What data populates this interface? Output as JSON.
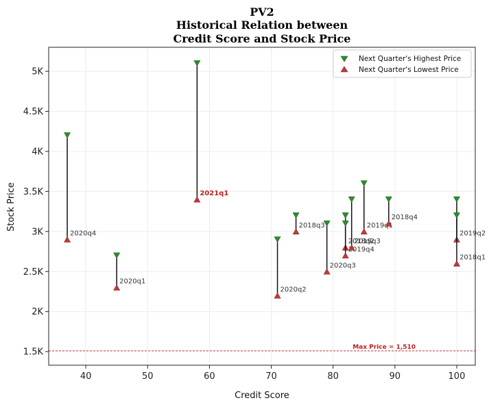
{
  "chart_data": {
    "type": "scatter",
    "title_lines": [
      "PV2",
      "Historical Relation between",
      "Credit Score and Stock Price"
    ],
    "xlabel": "Credit Score",
    "ylabel": "Stock Price",
    "xlim": [
      34,
      103
    ],
    "ylim": [
      1330,
      5300
    ],
    "x_ticks": [
      40,
      50,
      60,
      70,
      80,
      90,
      100
    ],
    "y_ticks": [
      {
        "value": 1500,
        "label": "1.5K"
      },
      {
        "value": 2000,
        "label": "2K"
      },
      {
        "value": 2500,
        "label": "2.5K"
      },
      {
        "value": 3000,
        "label": "3K"
      },
      {
        "value": 3500,
        "label": "3.5K"
      },
      {
        "value": 4000,
        "label": "4K"
      },
      {
        "value": 4500,
        "label": "4.5K"
      },
      {
        "value": 5000,
        "label": "5K"
      }
    ],
    "grid": true,
    "legend_position": "top-right",
    "legend": [
      {
        "name": "Next Quarter's Highest Price",
        "marker": "triangle-down",
        "color": "#2e8b2e"
      },
      {
        "name": "Next Quarter's Lowest Price",
        "marker": "triangle-up",
        "color": "#c0393b"
      }
    ],
    "points": [
      {
        "label": "2020q4",
        "x": 37,
        "high": 4200,
        "low": 2900
      },
      {
        "label": "2020q1",
        "x": 45,
        "high": 2700,
        "low": 2300
      },
      {
        "label": "2021q1",
        "x": 58,
        "high": 5100,
        "low": 3400,
        "highlight": true
      },
      {
        "label": "2020q2",
        "x": 71,
        "high": 2900,
        "low": 2200
      },
      {
        "label": "2018q3",
        "x": 74,
        "high": 3200,
        "low": 3000
      },
      {
        "label": "2020q3",
        "x": 79,
        "high": 3100,
        "low": 2500
      },
      {
        "label": "2018q2",
        "x": 82,
        "high": 3200,
        "low": 2800
      },
      {
        "label": "2019q4",
        "x": 82,
        "high": 3100,
        "low": 2700
      },
      {
        "label": "2019q3",
        "x": 83,
        "high": 3400,
        "low": 2800
      },
      {
        "label": "2019q1",
        "x": 85,
        "high": 3600,
        "low": 3000
      },
      {
        "label": "2018q4",
        "x": 89,
        "high": 3400,
        "low": 3100
      },
      {
        "label": "2019q2",
        "x": 100,
        "high": 3400,
        "low": 2900
      },
      {
        "label": "2018q1",
        "x": 100,
        "high": 3200,
        "low": 2600
      }
    ],
    "reference_line": {
      "value": 1510,
      "label": "Max Price = 1,510",
      "color": "#c0201f"
    }
  }
}
